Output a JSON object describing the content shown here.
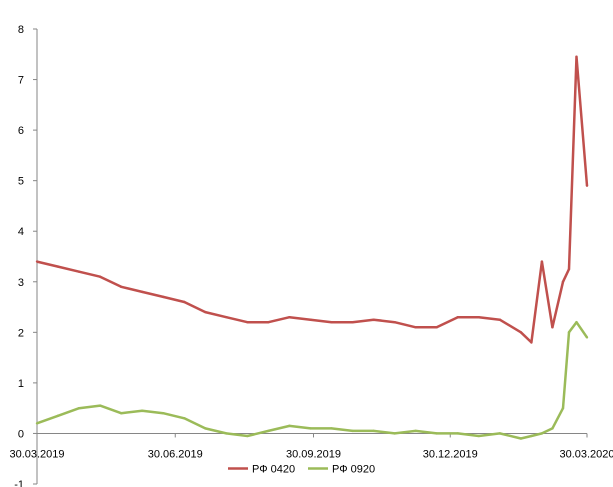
{
  "chart_data": {
    "type": "line",
    "title": "",
    "xlabel": "",
    "ylabel": "",
    "ylim": [
      -1,
      8
    ],
    "yticks": [
      "-1",
      "0",
      "1",
      "2",
      "3",
      "4",
      "5",
      "6",
      "7",
      "8"
    ],
    "xlim": [
      "2019-03-30",
      "2020-03-30"
    ],
    "xticks": [
      "30.03.2019",
      "30.06.2019",
      "30.09.2019",
      "30.12.2019",
      "30.03.2020"
    ],
    "legend_position": "bottom",
    "grid": false,
    "x": [
      "2019-03-30",
      "2019-04-13",
      "2019-04-27",
      "2019-05-11",
      "2019-05-25",
      "2019-06-08",
      "2019-06-22",
      "2019-07-06",
      "2019-07-20",
      "2019-08-03",
      "2019-08-17",
      "2019-08-31",
      "2019-09-14",
      "2019-09-28",
      "2019-10-12",
      "2019-10-26",
      "2019-11-09",
      "2019-11-23",
      "2019-12-07",
      "2019-12-21",
      "2020-01-04",
      "2020-01-18",
      "2020-02-01",
      "2020-02-15",
      "2020-02-22",
      "2020-02-29",
      "2020-03-07",
      "2020-03-14",
      "2020-03-18",
      "2020-03-23",
      "2020-03-30"
    ],
    "series": [
      {
        "name": "РФ 0420",
        "color": "#c0504d",
        "values": [
          3.4,
          3.3,
          3.2,
          3.1,
          2.9,
          2.8,
          2.7,
          2.6,
          2.4,
          2.3,
          2.2,
          2.2,
          2.3,
          2.25,
          2.2,
          2.2,
          2.25,
          2.2,
          2.1,
          2.1,
          2.3,
          2.3,
          2.25,
          2.0,
          1.8,
          3.4,
          2.1,
          3.0,
          3.25,
          7.45,
          4.9
        ]
      },
      {
        "name": "РФ 0920",
        "color": "#9bbb59",
        "values": [
          0.2,
          0.35,
          0.5,
          0.55,
          0.4,
          0.45,
          0.4,
          0.3,
          0.1,
          0.0,
          -0.05,
          0.05,
          0.15,
          0.1,
          0.1,
          0.05,
          0.05,
          0.0,
          0.05,
          0.0,
          0.0,
          -0.05,
          0.0,
          -0.1,
          -0.05,
          0.0,
          0.1,
          0.5,
          2.0,
          2.2,
          1.9
        ]
      }
    ]
  }
}
